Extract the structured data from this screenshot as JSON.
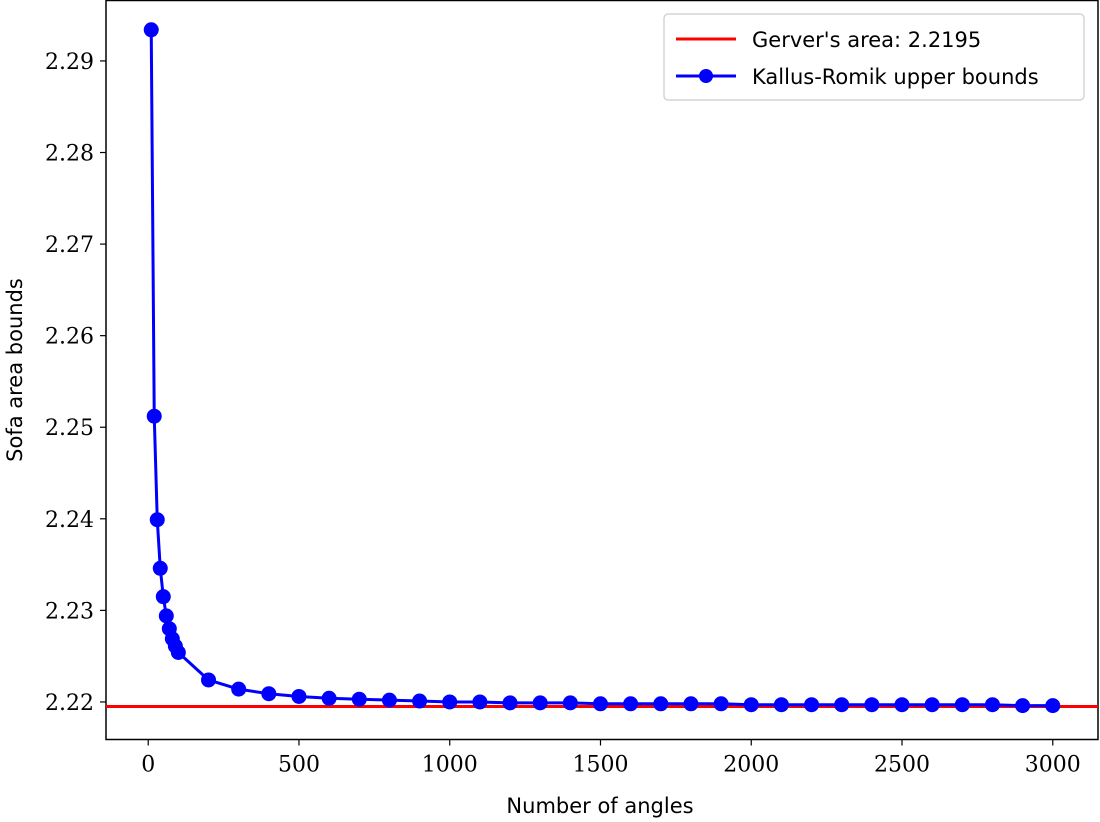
{
  "chart_data": {
    "type": "line",
    "xlabel": "Number of angles",
    "ylabel": "Sofa area bounds",
    "xlim": [
      -140,
      3150
    ],
    "ylim": [
      2.2159,
      2.2966
    ],
    "xticks": [
      0,
      500,
      1000,
      1500,
      2000,
      2500,
      3000
    ],
    "yticks": [
      2.22,
      2.23,
      2.24,
      2.25,
      2.26,
      2.27,
      2.28,
      2.29
    ],
    "xtick_labels": [
      "0",
      "500",
      "1000",
      "1500",
      "2000",
      "2500",
      "3000"
    ],
    "ytick_labels": [
      "2.22",
      "2.23",
      "2.24",
      "2.25",
      "2.26",
      "2.27",
      "2.28",
      "2.29"
    ],
    "grid": false,
    "legend_position": "top-right",
    "reference_line": {
      "name": "Gerver's area: 2.2195",
      "value": 2.2195,
      "color": "#ff0000"
    },
    "series": [
      {
        "name": "Kallus-Romik upper bounds",
        "color": "#0000ff",
        "x": [
          10,
          20,
          30,
          40,
          50,
          60,
          70,
          80,
          90,
          100,
          200,
          300,
          400,
          500,
          600,
          700,
          800,
          900,
          1000,
          1100,
          1200,
          1300,
          1400,
          1500,
          1600,
          1700,
          1800,
          1900,
          2000,
          2100,
          2200,
          2300,
          2400,
          2500,
          2600,
          2700,
          2800,
          2900,
          3000
        ],
        "values": [
          2.2934,
          2.2512,
          2.2399,
          2.2346,
          2.2315,
          2.2294,
          2.228,
          2.2269,
          2.2261,
          2.2254,
          2.2224,
          2.2214,
          2.2209,
          2.2206,
          2.2204,
          2.2203,
          2.2202,
          2.2201,
          2.22,
          2.22,
          2.2199,
          2.2199,
          2.2199,
          2.2198,
          2.2198,
          2.2198,
          2.2198,
          2.2198,
          2.2197,
          2.2197,
          2.2197,
          2.2197,
          2.2197,
          2.2197,
          2.2197,
          2.2197,
          2.2197,
          2.2196,
          2.2196
        ]
      }
    ]
  }
}
